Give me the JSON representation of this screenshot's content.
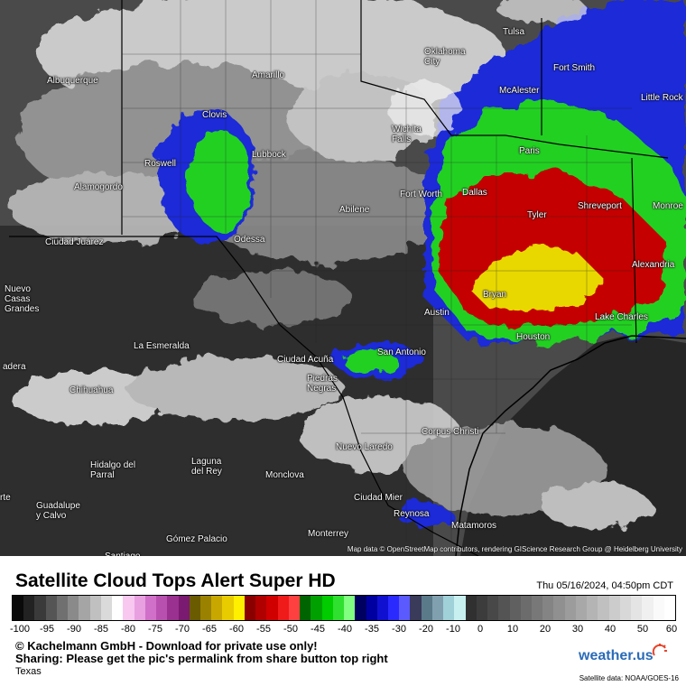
{
  "title": "Satellite Cloud Tops Alert Super HD",
  "datetime": "Thu 05/16/2024, 04:50pm CDT",
  "copyright": "© Kachelmann GmbH - Download for private use only!",
  "sharing": "Sharing: Please get the pic's permalink from share button top right",
  "region": "Texas",
  "logo": "weather.us",
  "source": "Satellite data: NOAA/GOES-16",
  "map_attribution": "Map data © OpenStreetMap contributors, rendering GIScience Research Group @ Heidelberg University",
  "scale_ticks": [
    "-100",
    "-95",
    "-90",
    "-85",
    "-80",
    "-75",
    "-70",
    "-65",
    "-60",
    "-55",
    "-50",
    "-45",
    "-40",
    "-35",
    "-30",
    "-20",
    "-10",
    "0",
    "10",
    "20",
    "30",
    "40",
    "50",
    "60"
  ],
  "colors": {
    "red_core": "#c40000",
    "yellow_core": "#e8d800",
    "green_band": "#22d022",
    "blue_band": "#1a2ad8",
    "logo_blue": "#2a6bb8"
  },
  "cities": [
    {
      "name": "Tulsa"
    },
    {
      "name": "Oklahoma\nCity"
    },
    {
      "name": "Fort Smith"
    },
    {
      "name": "McAlester"
    },
    {
      "name": "Little Rock"
    },
    {
      "name": "Albuquerque"
    },
    {
      "name": "Amarillo"
    },
    {
      "name": "Clovis"
    },
    {
      "name": "Wichita\nFalls"
    },
    {
      "name": "Paris"
    },
    {
      "name": "Lubbock"
    },
    {
      "name": "Roswell"
    },
    {
      "name": "Fort Worth"
    },
    {
      "name": "Dallas"
    },
    {
      "name": "Shreveport"
    },
    {
      "name": "Alamogordo"
    },
    {
      "name": "Abilene"
    },
    {
      "name": "Tyler"
    },
    {
      "name": "Monroe"
    },
    {
      "name": "Ciudad Juárez"
    },
    {
      "name": "Odessa"
    },
    {
      "name": "Alexandria"
    },
    {
      "name": "Nuevo\nCasas\nGrandes"
    },
    {
      "name": "Bryan"
    },
    {
      "name": "Austin"
    },
    {
      "name": "Lake Charles"
    },
    {
      "name": "La Esmeralda"
    },
    {
      "name": "Houston"
    },
    {
      "name": "San Antonio"
    },
    {
      "name": "adera"
    },
    {
      "name": "Ciudad Acuña"
    },
    {
      "name": "Piedras\nNegras"
    },
    {
      "name": "Chihuahua"
    },
    {
      "name": "Corpus Christi"
    },
    {
      "name": "Nuevo Laredo"
    },
    {
      "name": "Hidalgo del\nParral"
    },
    {
      "name": "Laguna\ndel Rey"
    },
    {
      "name": "Monclova"
    },
    {
      "name": "Ciudad Mier"
    },
    {
      "name": "Guadalupe\ny Calvo"
    },
    {
      "name": "Reynosa"
    },
    {
      "name": "Matamoros"
    },
    {
      "name": "Gómez Palacio"
    },
    {
      "name": "Monterrey"
    },
    {
      "name": "Santiago"
    },
    {
      "name": "rte"
    }
  ]
}
